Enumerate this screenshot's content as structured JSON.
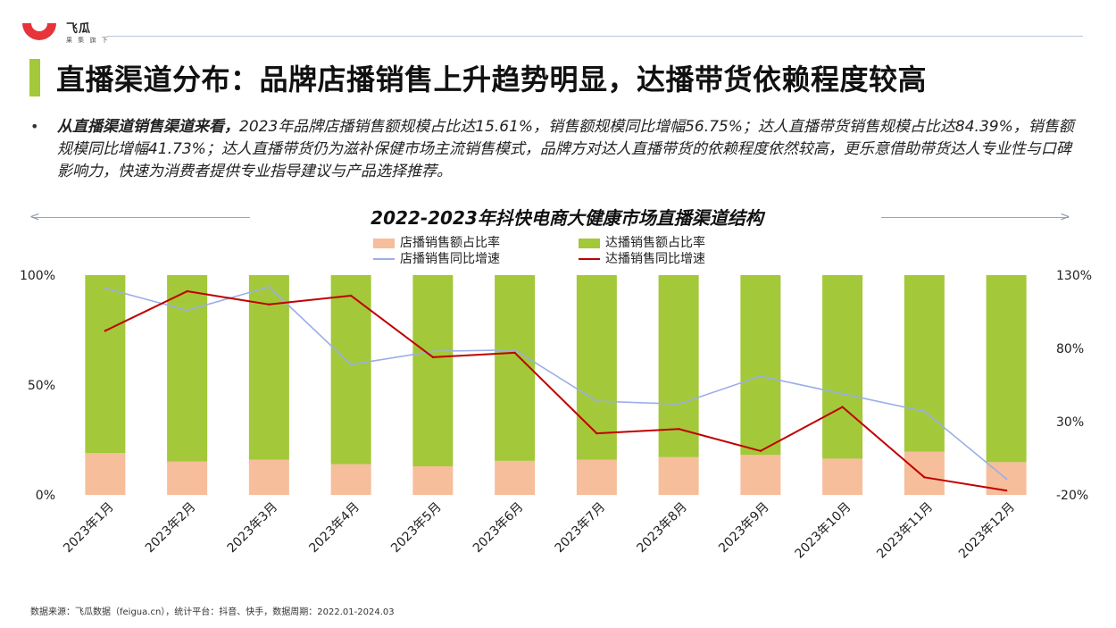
{
  "brand": {
    "name": "飞瓜",
    "slogan": "果 集 旗 下"
  },
  "header": {
    "title": "直播渠道分布：品牌店播销售上升趋势明显，达播带货依赖程度较高"
  },
  "summary": {
    "bullet": "•",
    "lead": "从直播渠道销售渠道来看，",
    "text": "2023年品牌店播销售额规模占比达15.61%，销售额规模同比增幅56.75%；达人直播带货销售规模占比达84.39%，销售额规模同比增幅41.73%；达人直播带货仍为滋补保健市场主流销售模式，品牌方对达人直播带货的依赖程度依然较高，更乐意借助带货达人专业性与口碑影响力，快速为消费者提供专业指导建议与产品选择推荐。"
  },
  "colors": {
    "store_share": "#f6be9b",
    "influencer_share": "#a3c839",
    "store_growth": "#9caee6",
    "influencer_growth": "#c00000",
    "accent": "#a3c839",
    "logo": "#e5343a"
  },
  "chart_data": {
    "type": "bar",
    "title": "2022-2023年抖快电商大健康市场直播渠道结构",
    "categories": [
      "2023年1月",
      "2023年2月",
      "2023年3月",
      "2023年4月",
      "2023年5月",
      "2023年6月",
      "2023年7月",
      "2023年8月",
      "2023年9月",
      "2023年10月",
      "2023年11月",
      "2023年12月"
    ],
    "series": [
      {
        "name": "店播销售额占比率",
        "kind": "stacked-bar",
        "axis": "left",
        "values": [
          19.0,
          15.2,
          16.0,
          14.0,
          13.0,
          15.5,
          16.0,
          17.2,
          18.2,
          16.5,
          19.7,
          14.9
        ]
      },
      {
        "name": "达播销售额占比率",
        "kind": "stacked-bar",
        "axis": "left",
        "values": [
          81.0,
          84.8,
          84.0,
          86.0,
          87.0,
          84.5,
          84.0,
          82.8,
          81.8,
          83.5,
          80.3,
          85.1
        ]
      },
      {
        "name": "店播销售同比增速",
        "kind": "line",
        "axis": "right",
        "values": [
          121,
          106,
          122,
          69,
          78,
          79,
          44,
          42,
          61,
          49,
          37,
          -9
        ]
      },
      {
        "name": "达播销售同比增速",
        "kind": "line",
        "axis": "right",
        "values": [
          92,
          119,
          110,
          116,
          74,
          77,
          22,
          25,
          10,
          40,
          -8,
          -17
        ]
      }
    ],
    "y_left": {
      "range": [
        0,
        100
      ],
      "ticks": [
        "0%",
        "50%",
        "100%"
      ],
      "tick_values": [
        0,
        50,
        100
      ]
    },
    "y_right": {
      "range": [
        -20,
        130
      ],
      "ticks": [
        "-20%",
        "30%",
        "80%",
        "130%"
      ],
      "tick_values": [
        -20,
        30,
        80,
        130
      ]
    },
    "legend_position": "top-center",
    "grid": false
  },
  "footer": {
    "source": "数据来源：飞瓜数据（feigua.cn），统计平台：抖音、快手，数据周期：2022.01-2024.03"
  }
}
